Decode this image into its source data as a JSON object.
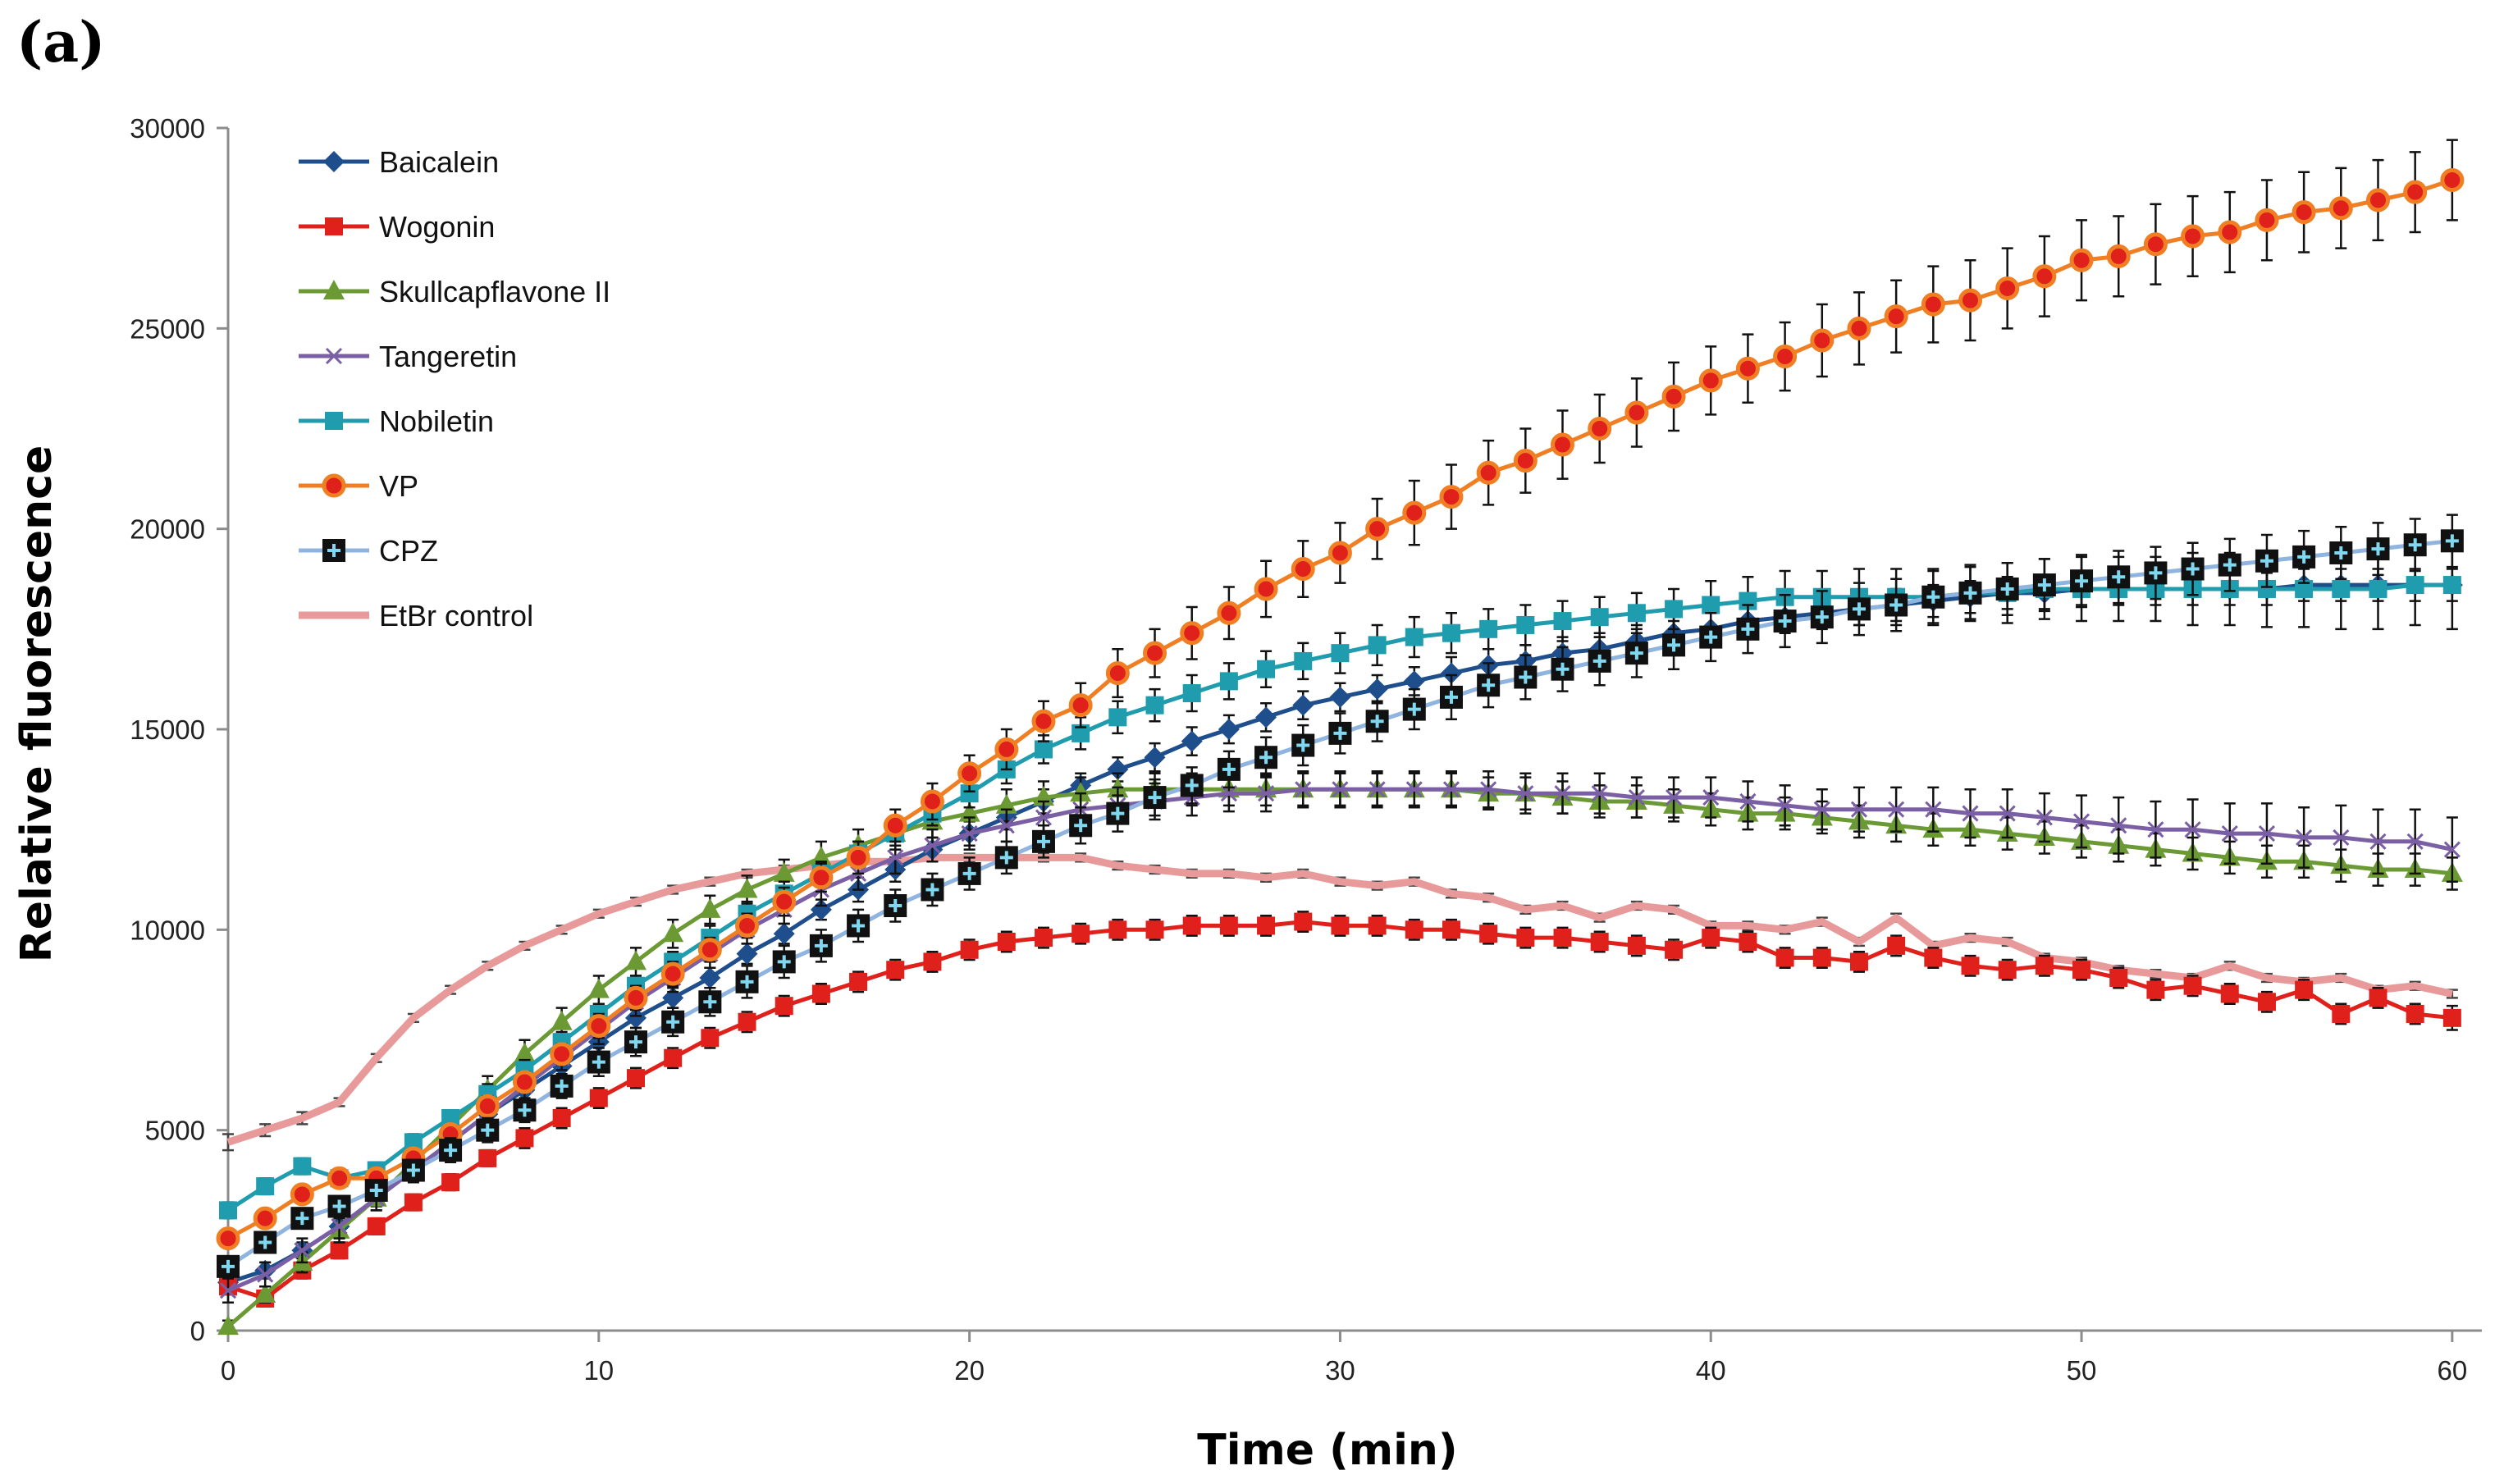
{
  "panel_label": "(a)",
  "chart_data": {
    "type": "line",
    "title": "",
    "xlabel": "Time (min)",
    "ylabel": "Relative fluorescence",
    "xlim": [
      0,
      60.8
    ],
    "ylim": [
      0,
      30000
    ],
    "xticks": [
      0,
      10,
      20,
      30,
      40,
      50,
      60
    ],
    "yticks": [
      0,
      5000,
      10000,
      15000,
      20000,
      25000,
      30000
    ],
    "grid": false,
    "legend_position": "top-left",
    "x": [
      0,
      1,
      2,
      3,
      4,
      5,
      6,
      7,
      8,
      9,
      10,
      11,
      12,
      13,
      14,
      15,
      16,
      17,
      18,
      19,
      20,
      21,
      22,
      23,
      24,
      25,
      26,
      27,
      28,
      29,
      30,
      31,
      32,
      33,
      34,
      35,
      36,
      37,
      38,
      39,
      40,
      41,
      42,
      43,
      44,
      45,
      46,
      47,
      48,
      49,
      50,
      51,
      52,
      53,
      54,
      55,
      56,
      57,
      58,
      59,
      60
    ],
    "series": [
      {
        "name": "Baicalein",
        "color": "#1F4E8C",
        "marker": "diamond",
        "values": [
          1200,
          1500,
          2000,
          2600,
          3300,
          4000,
          4700,
          5400,
          6000,
          6600,
          7200,
          7800,
          8300,
          8800,
          9400,
          9900,
          10500,
          11000,
          11500,
          12000,
          12400,
          12800,
          13200,
          13600,
          14000,
          14300,
          14700,
          15000,
          15300,
          15600,
          15800,
          16000,
          16200,
          16400,
          16600,
          16700,
          16900,
          17000,
          17200,
          17400,
          17500,
          17700,
          17800,
          17900,
          18000,
          18100,
          18200,
          18300,
          18400,
          18400,
          18500,
          18500,
          18500,
          18500,
          18500,
          18500,
          18600,
          18600,
          18600,
          18600,
          18600
        ],
        "error": [
          150,
          200,
          200,
          200,
          200,
          200,
          200,
          250,
          250,
          250,
          250,
          250,
          250,
          250,
          250,
          250,
          250,
          300,
          300,
          300,
          300,
          300,
          300,
          300,
          300,
          350,
          350,
          350,
          350,
          350,
          350,
          350,
          350,
          400,
          400,
          400,
          400,
          400,
          400,
          400,
          400,
          400,
          400,
          400,
          400,
          400,
          400,
          400,
          400,
          400,
          400,
          400,
          400,
          400,
          400,
          400,
          400,
          400,
          400,
          400,
          400
        ]
      },
      {
        "name": "Wogonin",
        "color": "#E0201B",
        "marker": "square",
        "values": [
          1100,
          800,
          1500,
          2000,
          2600,
          3200,
          3700,
          4300,
          4800,
          5300,
          5800,
          6300,
          6800,
          7300,
          7700,
          8100,
          8400,
          8700,
          9000,
          9200,
          9500,
          9700,
          9800,
          9900,
          10000,
          10000,
          10100,
          10100,
          10100,
          10200,
          10100,
          10100,
          10000,
          10000,
          9900,
          9800,
          9800,
          9700,
          9600,
          9500,
          9800,
          9700,
          9300,
          9300,
          9200,
          9600,
          9300,
          9100,
          9000,
          9100,
          9000,
          8800,
          8500,
          8600,
          8400,
          8200,
          8500,
          7900,
          8300,
          7900,
          7800
        ],
        "error": [
          200,
          200,
          200,
          200,
          200,
          200,
          200,
          200,
          250,
          250,
          250,
          250,
          250,
          250,
          250,
          250,
          250,
          250,
          250,
          250,
          250,
          250,
          250,
          250,
          250,
          250,
          250,
          250,
          250,
          250,
          250,
          250,
          250,
          250,
          250,
          250,
          250,
          250,
          250,
          250,
          250,
          250,
          250,
          250,
          250,
          250,
          250,
          250,
          250,
          250,
          250,
          250,
          250,
          250,
          250,
          250,
          250,
          250,
          250,
          250,
          300
        ]
      },
      {
        "name": "Skullcapflavone II",
        "color": "#6B9A35",
        "marker": "triangle",
        "values": [
          100,
          900,
          1700,
          2500,
          3300,
          4200,
          5100,
          6000,
          6900,
          7700,
          8500,
          9200,
          9900,
          10500,
          11000,
          11400,
          11800,
          12100,
          12400,
          12700,
          12900,
          13100,
          13300,
          13400,
          13500,
          13500,
          13500,
          13500,
          13500,
          13500,
          13500,
          13500,
          13500,
          13500,
          13400,
          13400,
          13300,
          13200,
          13200,
          13100,
          13000,
          12900,
          12900,
          12800,
          12700,
          12600,
          12500,
          12500,
          12400,
          12300,
          12200,
          12100,
          12000,
          11900,
          11800,
          11700,
          11700,
          11600,
          11500,
          11500,
          11400
        ],
        "error": [
          150,
          200,
          250,
          300,
          300,
          300,
          350,
          350,
          350,
          350,
          350,
          350,
          350,
          350,
          350,
          350,
          400,
          400,
          400,
          400,
          400,
          400,
          400,
          400,
          400,
          400,
          400,
          400,
          400,
          400,
          400,
          400,
          400,
          400,
          400,
          400,
          400,
          400,
          400,
          400,
          400,
          400,
          400,
          400,
          400,
          400,
          400,
          400,
          400,
          400,
          400,
          400,
          400,
          400,
          400,
          400,
          400,
          400,
          400,
          400,
          400
        ]
      },
      {
        "name": "Tangeretin",
        "color": "#7B5FA4",
        "marker": "x",
        "values": [
          1000,
          1400,
          2000,
          2600,
          3300,
          4000,
          4700,
          5400,
          6100,
          6800,
          7500,
          8200,
          8800,
          9400,
          10000,
          10500,
          11000,
          11400,
          11800,
          12100,
          12400,
          12600,
          12800,
          13000,
          13100,
          13200,
          13300,
          13400,
          13400,
          13500,
          13500,
          13500,
          13500,
          13500,
          13500,
          13400,
          13400,
          13400,
          13300,
          13300,
          13300,
          13200,
          13100,
          13000,
          13000,
          13000,
          13000,
          12900,
          12900,
          12800,
          12700,
          12600,
          12500,
          12500,
          12400,
          12400,
          12300,
          12300,
          12200,
          12200,
          12000
        ],
        "error": [
          300,
          300,
          300,
          300,
          300,
          300,
          300,
          300,
          300,
          300,
          350,
          350,
          350,
          350,
          350,
          350,
          400,
          400,
          400,
          400,
          400,
          400,
          400,
          400,
          450,
          450,
          450,
          450,
          450,
          450,
          450,
          450,
          450,
          450,
          450,
          500,
          500,
          500,
          500,
          500,
          500,
          500,
          500,
          500,
          550,
          550,
          550,
          600,
          600,
          600,
          650,
          700,
          700,
          750,
          750,
          750,
          750,
          800,
          800,
          800,
          800
        ]
      },
      {
        "name": "Nobiletin",
        "color": "#1F9CAE",
        "marker": "square",
        "values": [
          3000,
          3600,
          4100,
          3800,
          4000,
          4700,
          5300,
          5900,
          6500,
          7200,
          7900,
          8600,
          9200,
          9800,
          10400,
          10900,
          11400,
          11900,
          12400,
          12900,
          13400,
          14000,
          14500,
          14900,
          15300,
          15600,
          15900,
          16200,
          16500,
          16700,
          16900,
          17100,
          17300,
          17400,
          17500,
          17600,
          17700,
          17800,
          17900,
          18000,
          18100,
          18200,
          18300,
          18300,
          18300,
          18300,
          18300,
          18400,
          18400,
          18500,
          18500,
          18500,
          18500,
          18500,
          18500,
          18500,
          18500,
          18500,
          18500,
          18600,
          18600
        ],
        "error": [
          200,
          200,
          200,
          200,
          200,
          200,
          200,
          250,
          250,
          250,
          250,
          250,
          250,
          300,
          300,
          300,
          300,
          300,
          300,
          300,
          350,
          350,
          350,
          400,
          400,
          400,
          450,
          450,
          450,
          450,
          500,
          500,
          500,
          500,
          500,
          500,
          500,
          500,
          500,
          500,
          600,
          600,
          650,
          650,
          700,
          700,
          700,
          700,
          750,
          750,
          800,
          800,
          800,
          900,
          900,
          950,
          950,
          1000,
          1000,
          1000,
          1100
        ]
      },
      {
        "name": "VP",
        "color": "#F07E23",
        "marker": "circle",
        "values": [
          2300,
          2800,
          3400,
          3800,
          3800,
          4300,
          4900,
          5600,
          6200,
          6900,
          7600,
          8300,
          8900,
          9500,
          10100,
          10700,
          11300,
          11800,
          12600,
          13200,
          13900,
          14500,
          15200,
          15600,
          16400,
          16900,
          17400,
          17900,
          18500,
          19000,
          19400,
          20000,
          20400,
          20800,
          21400,
          21700,
          22100,
          22500,
          22900,
          23300,
          23700,
          24000,
          24300,
          24700,
          25000,
          25300,
          25600,
          25700,
          26000,
          26300,
          26700,
          26800,
          27100,
          27300,
          27400,
          27700,
          27900,
          28000,
          28200,
          28400,
          28700
        ],
        "error": [
          200,
          200,
          200,
          200,
          200,
          200,
          200,
          250,
          250,
          250,
          300,
          300,
          300,
          300,
          300,
          350,
          350,
          400,
          400,
          450,
          450,
          500,
          500,
          550,
          600,
          600,
          650,
          650,
          700,
          700,
          750,
          750,
          800,
          800,
          800,
          800,
          850,
          850,
          850,
          850,
          850,
          850,
          850,
          900,
          900,
          900,
          950,
          1000,
          1000,
          1000,
          1000,
          1000,
          1000,
          1000,
          1000,
          1000,
          1000,
          1000,
          1000,
          1000,
          1000
        ]
      },
      {
        "name": "CPZ",
        "color": "#8FB4DF",
        "marker": "square-plus",
        "values": [
          1600,
          2200,
          2800,
          3100,
          3500,
          4000,
          4500,
          5000,
          5500,
          6100,
          6700,
          7200,
          7700,
          8200,
          8700,
          9200,
          9600,
          10100,
          10600,
          11000,
          11400,
          11800,
          12200,
          12600,
          12900,
          13300,
          13600,
          14000,
          14300,
          14600,
          14900,
          15200,
          15500,
          15800,
          16100,
          16300,
          16500,
          16700,
          16900,
          17100,
          17300,
          17500,
          17700,
          17800,
          18000,
          18100,
          18300,
          18400,
          18500,
          18600,
          18700,
          18800,
          18900,
          19000,
          19100,
          19200,
          19300,
          19400,
          19500,
          19600,
          19700
        ],
        "error": [
          200,
          200,
          200,
          250,
          250,
          250,
          300,
          300,
          300,
          300,
          350,
          350,
          350,
          350,
          400,
          400,
          400,
          400,
          400,
          400,
          400,
          400,
          400,
          450,
          450,
          450,
          450,
          450,
          500,
          500,
          500,
          500,
          500,
          550,
          550,
          550,
          550,
          600,
          600,
          600,
          600,
          600,
          650,
          650,
          650,
          650,
          650,
          650,
          650,
          650,
          650,
          650,
          650,
          650,
          650,
          650,
          650,
          650,
          650,
          650,
          650
        ]
      },
      {
        "name": "EtBr control",
        "color": "#E89A9A",
        "marker": "none",
        "values": [
          4700,
          5000,
          5300,
          5700,
          6800,
          7800,
          8500,
          9100,
          9600,
          10000,
          10400,
          10700,
          11000,
          11200,
          11400,
          11500,
          11600,
          11700,
          11700,
          11800,
          11800,
          11800,
          11800,
          11800,
          11600,
          11500,
          11400,
          11400,
          11300,
          11400,
          11200,
          11100,
          11200,
          10900,
          10800,
          10500,
          10600,
          10300,
          10600,
          10500,
          10100,
          10100,
          10000,
          10200,
          9700,
          10300,
          9600,
          9800,
          9700,
          9300,
          9200,
          9000,
          8900,
          8800,
          9100,
          8800,
          8700,
          8800,
          8500,
          8600,
          8400
        ],
        "error": [
          200,
          150,
          150,
          100,
          100,
          100,
          100,
          100,
          100,
          100,
          100,
          100,
          100,
          100,
          100,
          100,
          100,
          100,
          100,
          100,
          100,
          100,
          100,
          100,
          100,
          100,
          100,
          100,
          100,
          100,
          100,
          100,
          100,
          100,
          100,
          100,
          100,
          100,
          100,
          100,
          100,
          100,
          100,
          100,
          100,
          100,
          100,
          100,
          100,
          100,
          100,
          100,
          100,
          100,
          100,
          100,
          100,
          100,
          100,
          100,
          100
        ]
      }
    ]
  }
}
